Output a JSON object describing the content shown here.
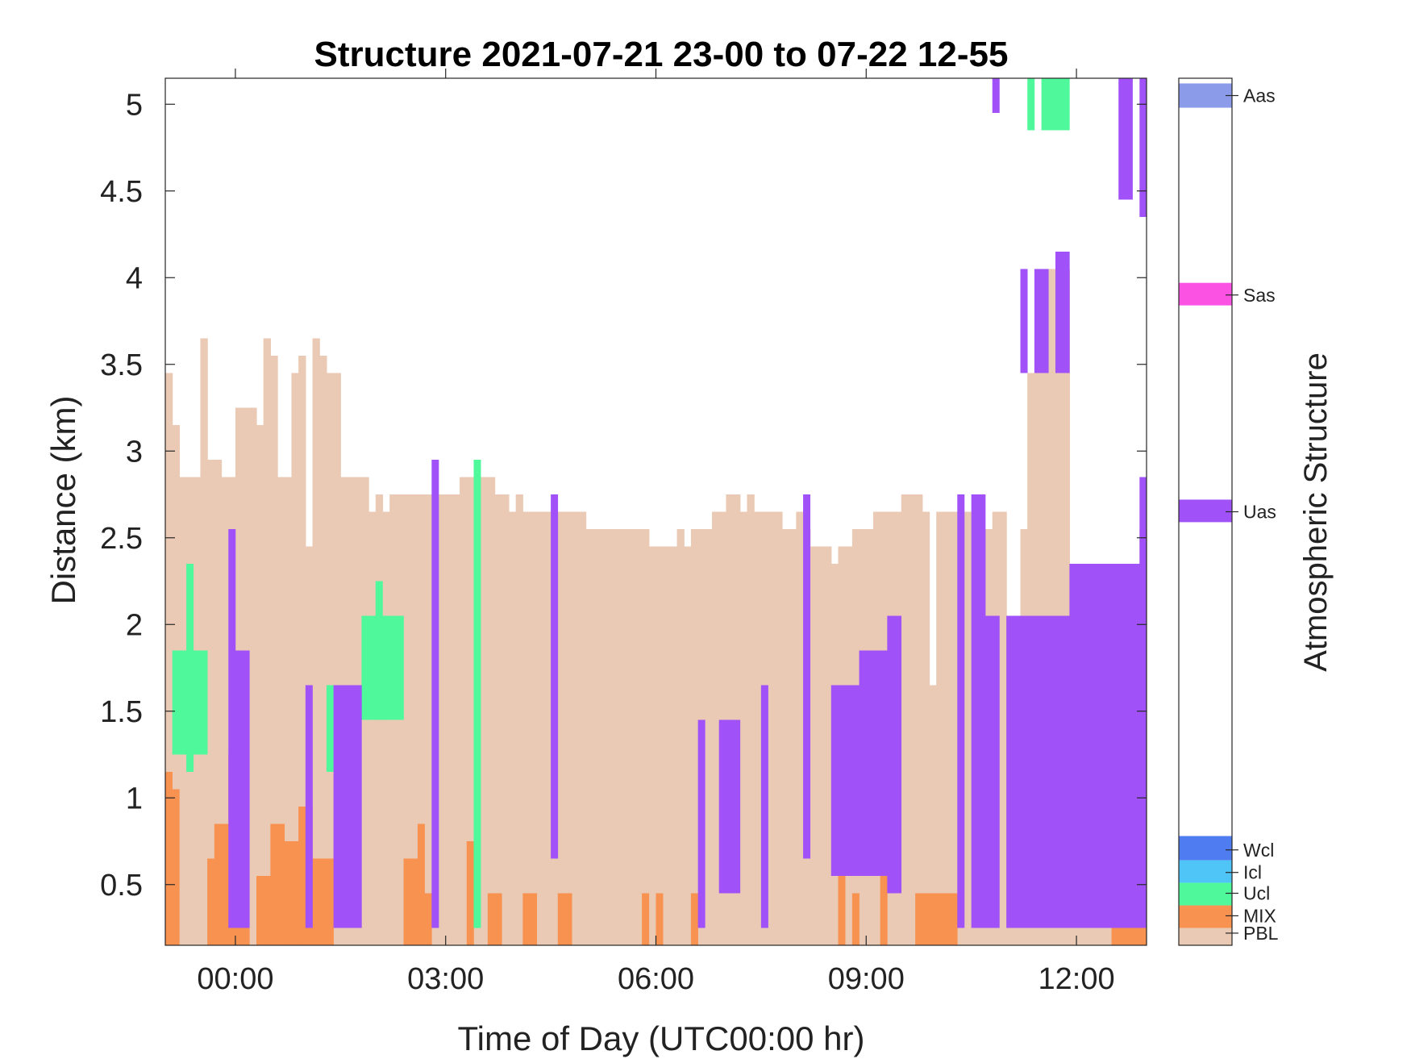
{
  "chart_data": {
    "type": "heatmap",
    "title": "Structure 2021-07-21 23-00 to 07-22 12-55",
    "xlabel": "Time of Day (UTC00:00 hr)",
    "ylabel": "Distance (km)",
    "colorbar_label": "Atmospheric Structure",
    "xlim": [
      -1.0,
      13.0
    ],
    "ylim": [
      0.15,
      5.15
    ],
    "x_ticks": [
      {
        "value": 0,
        "label": "00:00"
      },
      {
        "value": 3,
        "label": "03:00"
      },
      {
        "value": 6,
        "label": "06:00"
      },
      {
        "value": 9,
        "label": "09:00"
      },
      {
        "value": 12,
        "label": "12:00"
      }
    ],
    "y_ticks": [
      {
        "value": 0.5,
        "label": "0.5"
      },
      {
        "value": 1.0,
        "label": "1"
      },
      {
        "value": 1.5,
        "label": "1.5"
      },
      {
        "value": 2.0,
        "label": "2"
      },
      {
        "value": 2.5,
        "label": "2.5"
      },
      {
        "value": 3.0,
        "label": "3"
      },
      {
        "value": 3.5,
        "label": "3.5"
      },
      {
        "value": 4.0,
        "label": "4"
      },
      {
        "value": 4.5,
        "label": "4.5"
      },
      {
        "value": 5.0,
        "label": "5"
      }
    ],
    "categories": [
      {
        "code": "PBL",
        "color": "#EACAB4"
      },
      {
        "code": "MIX",
        "color": "#F79250"
      },
      {
        "code": "Ucl",
        "color": "#4FF89A"
      },
      {
        "code": "Icl",
        "color": "#4FC4F7"
      },
      {
        "code": "Wcl",
        "color": "#4F7CF0"
      },
      {
        "code": "Uas",
        "color": "#A052F8"
      },
      {
        "code": "Sas",
        "color": "#FC52E4"
      },
      {
        "code": "Aas",
        "color": "#8C9AEA"
      }
    ],
    "colorbar_levels": [
      {
        "code": "Aas",
        "value": 5.05
      },
      {
        "code": "Sas",
        "value": 3.9
      },
      {
        "code": "Uas",
        "value": 2.65
      },
      {
        "code": "Wcl",
        "value": 0.7
      },
      {
        "code": "Icl",
        "value": 0.57
      },
      {
        "code": "Ucl",
        "value": 0.45
      },
      {
        "code": "MIX",
        "value": 0.32
      },
      {
        "code": "PBL",
        "value": 0.22
      }
    ],
    "columns": [
      [
        -1.0,
        3.45
      ],
      [
        -0.9,
        3.15
      ],
      [
        -0.8,
        2.85
      ],
      [
        -0.7,
        2.85
      ],
      [
        -0.6,
        2.85
      ],
      [
        -0.5,
        3.65
      ],
      [
        -0.4,
        2.95
      ],
      [
        -0.3,
        2.95
      ],
      [
        -0.2,
        2.85
      ],
      [
        -0.1,
        2.85
      ],
      [
        0.0,
        3.25
      ],
      [
        0.1,
        3.25
      ],
      [
        0.2,
        3.25
      ],
      [
        0.3,
        3.15
      ],
      [
        0.4,
        3.65
      ],
      [
        0.5,
        3.55
      ],
      [
        0.6,
        2.85
      ],
      [
        0.7,
        2.85
      ],
      [
        0.8,
        3.45
      ],
      [
        0.9,
        3.55
      ],
      [
        1.0,
        2.45
      ],
      [
        1.1,
        3.65
      ],
      [
        1.2,
        3.55
      ],
      [
        1.3,
        3.45
      ],
      [
        1.4,
        3.45
      ],
      [
        1.5,
        2.85
      ],
      [
        1.6,
        2.85
      ],
      [
        1.7,
        2.85
      ],
      [
        1.8,
        2.85
      ],
      [
        1.9,
        2.65
      ],
      [
        2.0,
        2.75
      ],
      [
        2.1,
        2.65
      ],
      [
        2.2,
        2.75
      ],
      [
        2.3,
        2.75
      ],
      [
        2.4,
        2.75
      ],
      [
        2.5,
        2.75
      ],
      [
        2.6,
        2.75
      ],
      [
        2.7,
        2.75
      ],
      [
        2.8,
        2.75
      ],
      [
        2.9,
        2.75
      ],
      [
        3.0,
        2.75
      ],
      [
        3.1,
        2.75
      ],
      [
        3.2,
        2.85
      ],
      [
        3.3,
        2.85
      ],
      [
        3.4,
        2.75
      ],
      [
        3.5,
        2.85
      ],
      [
        3.6,
        2.85
      ],
      [
        3.7,
        2.75
      ],
      [
        3.8,
        2.75
      ],
      [
        3.9,
        2.65
      ],
      [
        4.0,
        2.75
      ],
      [
        4.1,
        2.65
      ],
      [
        4.2,
        2.65
      ],
      [
        4.3,
        2.65
      ],
      [
        4.4,
        2.65
      ],
      [
        4.5,
        2.65
      ],
      [
        4.6,
        2.65
      ],
      [
        4.7,
        2.65
      ],
      [
        4.8,
        2.65
      ],
      [
        4.9,
        2.65
      ],
      [
        5.0,
        2.55
      ],
      [
        5.1,
        2.55
      ],
      [
        5.2,
        2.55
      ],
      [
        5.3,
        2.55
      ],
      [
        5.4,
        2.55
      ],
      [
        5.5,
        2.55
      ],
      [
        5.6,
        2.55
      ],
      [
        5.7,
        2.55
      ],
      [
        5.8,
        2.55
      ],
      [
        5.9,
        2.45
      ],
      [
        6.0,
        2.45
      ],
      [
        6.1,
        2.45
      ],
      [
        6.2,
        2.45
      ],
      [
        6.3,
        2.55
      ],
      [
        6.4,
        2.45
      ],
      [
        6.5,
        2.55
      ],
      [
        6.6,
        2.55
      ],
      [
        6.7,
        2.55
      ],
      [
        6.8,
        2.65
      ],
      [
        6.9,
        2.65
      ],
      [
        7.0,
        2.75
      ],
      [
        7.1,
        2.75
      ],
      [
        7.2,
        2.65
      ],
      [
        7.3,
        2.75
      ],
      [
        7.4,
        2.65
      ],
      [
        7.5,
        2.65
      ],
      [
        7.6,
        2.65
      ],
      [
        7.7,
        2.65
      ],
      [
        7.8,
        2.55
      ],
      [
        7.9,
        2.55
      ],
      [
        8.0,
        2.65
      ],
      [
        8.1,
        2.55
      ],
      [
        8.2,
        2.45
      ],
      [
        8.3,
        2.45
      ],
      [
        8.4,
        2.45
      ],
      [
        8.5,
        2.35
      ],
      [
        8.6,
        2.45
      ],
      [
        8.7,
        2.45
      ],
      [
        8.8,
        2.55
      ],
      [
        8.9,
        2.55
      ],
      [
        9.0,
        2.55
      ],
      [
        9.1,
        2.65
      ],
      [
        9.2,
        2.65
      ],
      [
        9.3,
        2.65
      ],
      [
        9.4,
        2.65
      ],
      [
        9.5,
        2.75
      ],
      [
        9.6,
        2.75
      ],
      [
        9.7,
        2.75
      ],
      [
        9.8,
        2.65
      ],
      [
        9.9,
        1.65
      ],
      [
        10.0,
        2.65
      ],
      [
        10.1,
        2.65
      ],
      [
        10.2,
        2.65
      ],
      [
        10.3,
        1.75
      ],
      [
        10.4,
        2.65
      ],
      [
        10.5,
        2.65
      ],
      [
        10.6,
        2.55
      ],
      [
        10.7,
        2.55
      ],
      [
        10.8,
        2.65
      ],
      [
        10.9,
        2.65
      ],
      [
        11.0,
        2.05
      ],
      [
        11.1,
        2.05
      ],
      [
        11.2,
        2.55
      ],
      [
        11.3,
        3.45
      ],
      [
        11.4,
        3.65
      ],
      [
        11.5,
        4.05
      ],
      [
        11.6,
        4.05
      ],
      [
        11.7,
        4.05
      ],
      [
        11.8,
        4.05
      ],
      [
        11.9,
        2.35
      ],
      [
        12.0,
        2.25
      ],
      [
        12.1,
        2.25
      ],
      [
        12.2,
        2.25
      ],
      [
        12.3,
        2.35
      ],
      [
        12.4,
        2.35
      ],
      [
        12.5,
        2.35
      ],
      [
        12.6,
        2.35
      ],
      [
        12.7,
        2.35
      ],
      [
        12.8,
        2.35
      ],
      [
        12.9,
        2.55
      ]
    ],
    "segments": [
      {
        "t0": -1.0,
        "t1": -0.9,
        "y0": 0.15,
        "y1": 1.15,
        "code": "MIX"
      },
      {
        "t0": -0.9,
        "t1": -0.8,
        "y0": 0.15,
        "y1": 1.05,
        "code": "MIX"
      },
      {
        "t0": -0.4,
        "t1": -0.3,
        "y0": 0.15,
        "y1": 0.65,
        "code": "MIX"
      },
      {
        "t0": -0.3,
        "t1": -0.1,
        "y0": 0.15,
        "y1": 0.85,
        "code": "MIX"
      },
      {
        "t0": -0.1,
        "t1": 0.0,
        "y0": 0.15,
        "y1": 1.25,
        "code": "MIX"
      },
      {
        "t0": 0.0,
        "t1": 0.2,
        "y0": 0.15,
        "y1": 0.25,
        "code": "MIX"
      },
      {
        "t0": 0.3,
        "t1": 0.5,
        "y0": 0.15,
        "y1": 0.55,
        "code": "MIX"
      },
      {
        "t0": 0.5,
        "t1": 0.7,
        "y0": 0.15,
        "y1": 0.85,
        "code": "MIX"
      },
      {
        "t0": 0.7,
        "t1": 0.9,
        "y0": 0.15,
        "y1": 0.75,
        "code": "MIX"
      },
      {
        "t0": 0.9,
        "t1": 1.1,
        "y0": 0.15,
        "y1": 0.95,
        "code": "MIX"
      },
      {
        "t0": 1.1,
        "t1": 1.3,
        "y0": 0.15,
        "y1": 0.65,
        "code": "MIX"
      },
      {
        "t0": 1.3,
        "t1": 1.4,
        "y0": 0.15,
        "y1": 0.65,
        "code": "MIX"
      },
      {
        "t0": 2.4,
        "t1": 2.6,
        "y0": 0.15,
        "y1": 0.65,
        "code": "MIX"
      },
      {
        "t0": 2.6,
        "t1": 2.7,
        "y0": 0.15,
        "y1": 0.85,
        "code": "MIX"
      },
      {
        "t0": 2.7,
        "t1": 2.8,
        "y0": 0.15,
        "y1": 0.45,
        "code": "MIX"
      },
      {
        "t0": 3.3,
        "t1": 3.4,
        "y0": 0.15,
        "y1": 0.75,
        "code": "MIX"
      },
      {
        "t0": 3.6,
        "t1": 3.8,
        "y0": 0.15,
        "y1": 0.45,
        "code": "MIX"
      },
      {
        "t0": 4.1,
        "t1": 4.3,
        "y0": 0.15,
        "y1": 0.45,
        "code": "MIX"
      },
      {
        "t0": 4.6,
        "t1": 4.8,
        "y0": 0.15,
        "y1": 0.45,
        "code": "MIX"
      },
      {
        "t0": 5.8,
        "t1": 5.9,
        "y0": 0.15,
        "y1": 0.45,
        "code": "MIX"
      },
      {
        "t0": 6.0,
        "t1": 6.1,
        "y0": 0.15,
        "y1": 0.45,
        "code": "MIX"
      },
      {
        "t0": 6.5,
        "t1": 6.6,
        "y0": 0.15,
        "y1": 0.45,
        "code": "MIX"
      },
      {
        "t0": 8.6,
        "t1": 8.7,
        "y0": 0.15,
        "y1": 0.55,
        "code": "MIX"
      },
      {
        "t0": 8.8,
        "t1": 8.9,
        "y0": 0.15,
        "y1": 0.45,
        "code": "MIX"
      },
      {
        "t0": 9.2,
        "t1": 9.3,
        "y0": 0.15,
        "y1": 0.65,
        "code": "MIX"
      },
      {
        "t0": 9.7,
        "t1": 10.3,
        "y0": 0.15,
        "y1": 0.45,
        "code": "MIX"
      },
      {
        "t0": 12.5,
        "t1": 13.0,
        "y0": 0.15,
        "y1": 0.25,
        "code": "MIX"
      },
      {
        "t0": -0.9,
        "t1": -0.4,
        "y0": 1.25,
        "y1": 1.85,
        "code": "Ucl"
      },
      {
        "t0": -0.7,
        "t1": -0.6,
        "y0": 1.15,
        "y1": 2.35,
        "code": "Ucl"
      },
      {
        "t0": 1.3,
        "t1": 1.4,
        "y0": 1.15,
        "y1": 1.65,
        "code": "Ucl"
      },
      {
        "t0": 1.8,
        "t1": 2.4,
        "y0": 1.45,
        "y1": 2.05,
        "code": "Ucl"
      },
      {
        "t0": 2.0,
        "t1": 2.1,
        "y0": 1.45,
        "y1": 2.25,
        "code": "Ucl"
      },
      {
        "t0": 3.4,
        "t1": 3.5,
        "y0": 0.25,
        "y1": 2.95,
        "code": "Ucl"
      },
      {
        "t0": 11.3,
        "t1": 11.4,
        "y0": 4.85,
        "y1": 5.15,
        "code": "Ucl"
      },
      {
        "t0": 11.5,
        "t1": 11.9,
        "y0": 4.85,
        "y1": 5.15,
        "code": "Ucl"
      },
      {
        "t0": -0.1,
        "t1": 0.2,
        "y0": 0.25,
        "y1": 1.85,
        "code": "Uas"
      },
      {
        "t0": -0.1,
        "t1": 0.0,
        "y0": 1.85,
        "y1": 2.55,
        "code": "Uas"
      },
      {
        "t0": 1.0,
        "t1": 1.1,
        "y0": 0.25,
        "y1": 1.65,
        "code": "Uas"
      },
      {
        "t0": 1.4,
        "t1": 1.8,
        "y0": 0.25,
        "y1": 1.65,
        "code": "Uas"
      },
      {
        "t0": 2.8,
        "t1": 2.9,
        "y0": 0.25,
        "y1": 2.95,
        "code": "Uas"
      },
      {
        "t0": 4.5,
        "t1": 4.6,
        "y0": 0.65,
        "y1": 2.75,
        "code": "Uas"
      },
      {
        "t0": 6.6,
        "t1": 6.7,
        "y0": 0.25,
        "y1": 1.45,
        "code": "Uas"
      },
      {
        "t0": 6.9,
        "t1": 7.2,
        "y0": 0.45,
        "y1": 1.45,
        "code": "Uas"
      },
      {
        "t0": 7.5,
        "t1": 7.6,
        "y0": 0.25,
        "y1": 1.65,
        "code": "Uas"
      },
      {
        "t0": 8.1,
        "t1": 8.2,
        "y0": 0.65,
        "y1": 2.75,
        "code": "Uas"
      },
      {
        "t0": 8.5,
        "t1": 8.9,
        "y0": 0.55,
        "y1": 1.65,
        "code": "Uas"
      },
      {
        "t0": 8.9,
        "t1": 9.3,
        "y0": 0.55,
        "y1": 1.85,
        "code": "Uas"
      },
      {
        "t0": 9.3,
        "t1": 9.5,
        "y0": 0.45,
        "y1": 2.05,
        "code": "Uas"
      },
      {
        "t0": 10.3,
        "t1": 10.4,
        "y0": 0.25,
        "y1": 2.75,
        "code": "Uas"
      },
      {
        "t0": 10.5,
        "t1": 10.7,
        "y0": 0.25,
        "y1": 2.75,
        "code": "Uas"
      },
      {
        "t0": 10.7,
        "t1": 10.9,
        "y0": 0.25,
        "y1": 2.05,
        "code": "Uas"
      },
      {
        "t0": 11.0,
        "t1": 12.0,
        "y0": 0.25,
        "y1": 2.05,
        "code": "Uas"
      },
      {
        "t0": 11.9,
        "t1": 12.9,
        "y0": 0.25,
        "y1": 2.35,
        "code": "Uas"
      },
      {
        "t0": 12.9,
        "t1": 13.0,
        "y0": 0.25,
        "y1": 2.85,
        "code": "Uas"
      },
      {
        "t0": 11.2,
        "t1": 11.3,
        "y0": 3.45,
        "y1": 4.05,
        "code": "Uas"
      },
      {
        "t0": 11.4,
        "t1": 11.6,
        "y0": 3.45,
        "y1": 4.05,
        "code": "Uas"
      },
      {
        "t0": 11.7,
        "t1": 11.9,
        "y0": 3.45,
        "y1": 4.15,
        "code": "Uas"
      },
      {
        "t0": 10.8,
        "t1": 10.9,
        "y0": 4.95,
        "y1": 5.15,
        "code": "Uas"
      },
      {
        "t0": 12.6,
        "t1": 12.8,
        "y0": 4.45,
        "y1": 5.15,
        "code": "Uas"
      },
      {
        "t0": 12.9,
        "t1": 13.0,
        "y0": 4.35,
        "y1": 5.15,
        "code": "Uas"
      }
    ]
  }
}
